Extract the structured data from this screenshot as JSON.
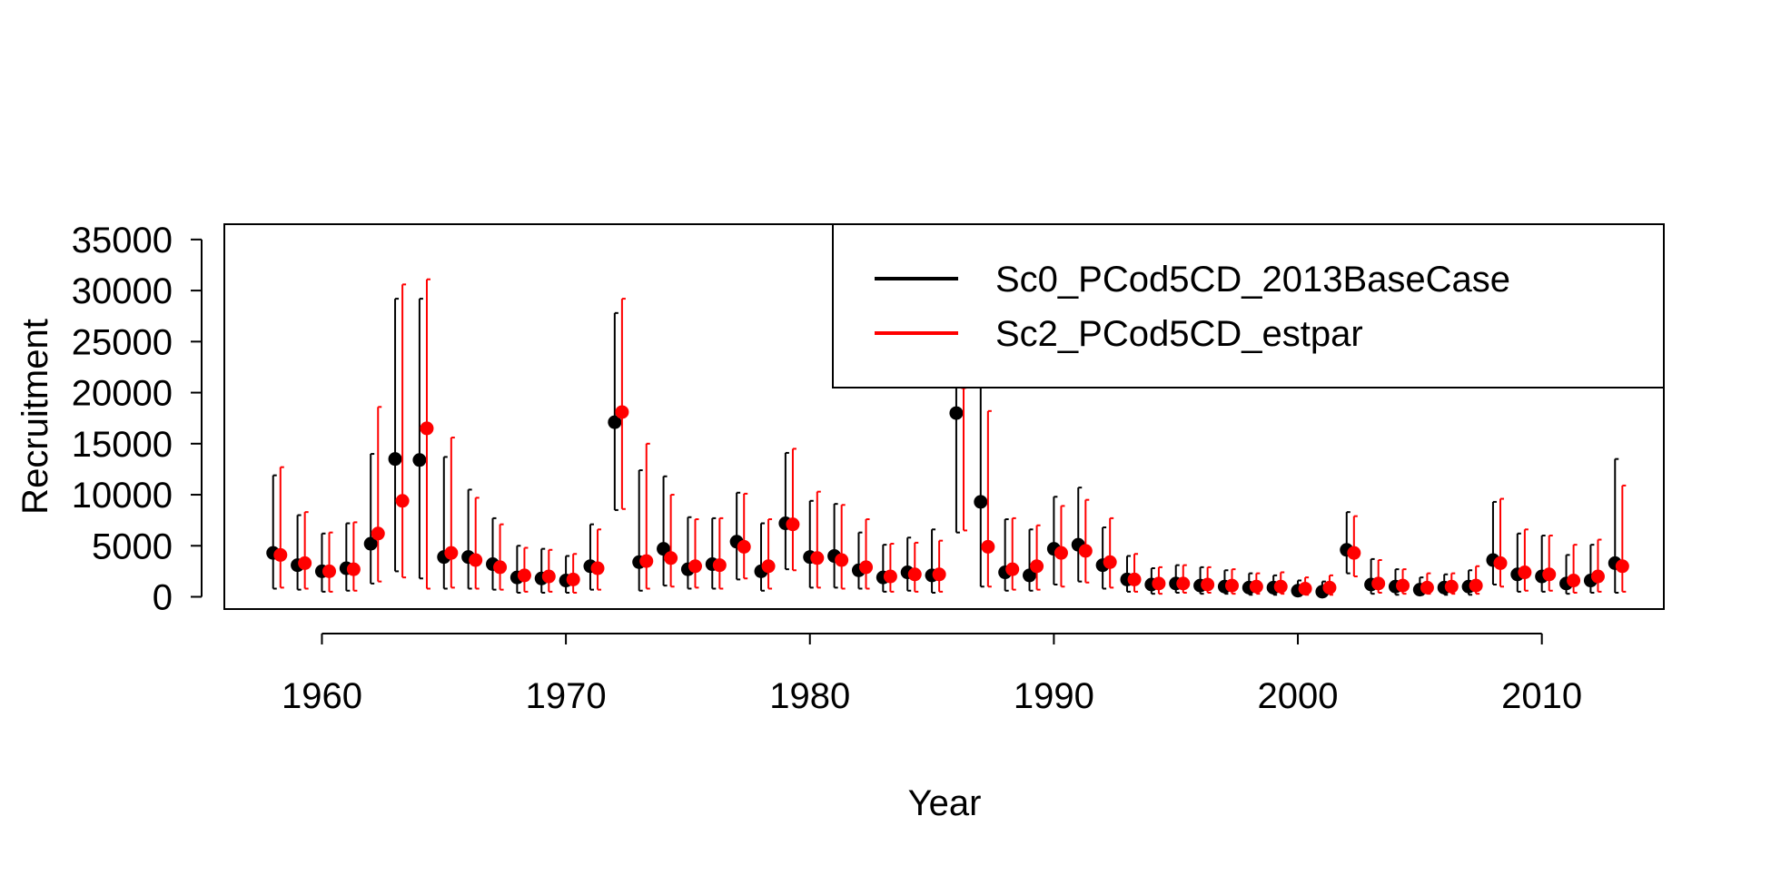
{
  "chart_data": {
    "type": "scatter",
    "xlabel": "Year",
    "ylabel": "Recruitment",
    "xlim": [
      1956,
      2015
    ],
    "ylim": [
      -1200,
      36500
    ],
    "xticks": [
      1960,
      1970,
      1980,
      1990,
      2000,
      2010
    ],
    "yticks": [
      0,
      5000,
      10000,
      15000,
      20000,
      25000,
      30000,
      35000
    ],
    "legend_position": "top-right",
    "series": [
      {
        "name": "Sc0_PCod5CD_2013BaseCase",
        "color": "#000000",
        "x": [
          1958,
          1959,
          1960,
          1961,
          1962,
          1963,
          1964,
          1965,
          1966,
          1967,
          1968,
          1969,
          1970,
          1971,
          1972,
          1973,
          1974,
          1975,
          1976,
          1977,
          1978,
          1979,
          1980,
          1981,
          1982,
          1983,
          1984,
          1985,
          1986,
          1987,
          1988,
          1989,
          1990,
          1991,
          1992,
          1993,
          1994,
          1995,
          1996,
          1997,
          1998,
          1999,
          2000,
          2001,
          2002,
          2003,
          2004,
          2005,
          2006,
          2007,
          2008,
          2009,
          2010,
          2011,
          2012,
          2013
        ],
        "y": [
          4300,
          3100,
          2500,
          2800,
          5200,
          13500,
          13400,
          3900,
          3900,
          3200,
          1900,
          1800,
          1600,
          3000,
          17100,
          3400,
          4700,
          2700,
          3200,
          5400,
          2500,
          7200,
          3900,
          4000,
          2600,
          1900,
          2400,
          2100,
          18000,
          9300,
          2400,
          2100,
          4700,
          5100,
          3100,
          1700,
          1200,
          1300,
          1100,
          1000,
          900,
          900,
          600,
          500,
          4600,
          1200,
          1000,
          700,
          900,
          1000,
          3600,
          2200,
          2000,
          1300,
          1600,
          3300
        ],
        "lower": [
          800,
          700,
          500,
          600,
          1300,
          2500,
          1800,
          800,
          800,
          700,
          400,
          400,
          400,
          700,
          8500,
          600,
          1100,
          800,
          800,
          1700,
          600,
          2700,
          900,
          900,
          800,
          500,
          600,
          400,
          6300,
          1000,
          600,
          600,
          1200,
          1500,
          800,
          500,
          300,
          400,
          300,
          300,
          200,
          200,
          100,
          100,
          2300,
          300,
          200,
          200,
          200,
          200,
          1200,
          500,
          500,
          300,
          400,
          400
        ],
        "upper": [
          11900,
          8000,
          6200,
          7200,
          14000,
          29200,
          29200,
          13700,
          10500,
          7700,
          5000,
          4700,
          4000,
          7100,
          27800,
          12400,
          11800,
          7800,
          7700,
          10200,
          7200,
          14100,
          9400,
          9100,
          6300,
          5100,
          5800,
          6600,
          27000,
          27500,
          7600,
          6600,
          9800,
          10700,
          6800,
          4000,
          2800,
          3100,
          2900,
          2600,
          2300,
          2100,
          1600,
          1500,
          8300,
          3700,
          2700,
          1900,
          2200,
          2600,
          9300,
          6200,
          6000,
          4100,
          5100,
          13500
        ]
      },
      {
        "name": "Sc2_PCod5CD_estpar",
        "color": "#ff0000",
        "x": [
          1958,
          1959,
          1960,
          1961,
          1962,
          1963,
          1964,
          1965,
          1966,
          1967,
          1968,
          1969,
          1970,
          1971,
          1972,
          1973,
          1974,
          1975,
          1976,
          1977,
          1978,
          1979,
          1980,
          1981,
          1982,
          1983,
          1984,
          1985,
          1986,
          1987,
          1988,
          1989,
          1990,
          1991,
          1992,
          1993,
          1994,
          1995,
          1996,
          1997,
          1998,
          1999,
          2000,
          2001,
          2002,
          2003,
          2004,
          2005,
          2006,
          2007,
          2008,
          2009,
          2010,
          2011,
          2012,
          2013
        ],
        "y": [
          4100,
          3300,
          2500,
          2700,
          6200,
          9400,
          16500,
          4300,
          3600,
          2900,
          2100,
          2000,
          1700,
          2800,
          18100,
          3500,
          3800,
          3000,
          3100,
          4900,
          3000,
          7100,
          3800,
          3600,
          2900,
          2000,
          2200,
          2200,
          21000,
          4900,
          2700,
          3000,
          4300,
          4500,
          3400,
          1700,
          1300,
          1300,
          1200,
          1100,
          1000,
          1000,
          800,
          900,
          4300,
          1300,
          1100,
          900,
          1000,
          1100,
          3300,
          2400,
          2200,
          1600,
          2000,
          3000
        ],
        "lower": [
          900,
          800,
          500,
          600,
          1500,
          1900,
          800,
          900,
          800,
          700,
          500,
          500,
          400,
          700,
          8600,
          800,
          1000,
          900,
          800,
          1800,
          800,
          2600,
          900,
          800,
          800,
          500,
          500,
          500,
          6500,
          1000,
          700,
          700,
          1000,
          1400,
          900,
          500,
          300,
          400,
          400,
          300,
          300,
          300,
          200,
          200,
          2000,
          400,
          300,
          300,
          300,
          300,
          1000,
          600,
          600,
          400,
          500,
          500
        ],
        "upper": [
          12700,
          8300,
          6300,
          7300,
          18600,
          30600,
          31100,
          15600,
          9700,
          7100,
          4800,
          4600,
          4200,
          6600,
          29200,
          15000,
          10000,
          7600,
          7700,
          10100,
          7600,
          14500,
          10300,
          9000,
          7600,
          5200,
          5300,
          5500,
          30500,
          18200,
          7700,
          7000,
          8900,
          9500,
          7700,
          4200,
          2900,
          3100,
          2900,
          2700,
          2300,
          2400,
          1900,
          2100,
          7900,
          3600,
          2700,
          2300,
          2300,
          3000,
          9600,
          6600,
          6000,
          5100,
          5600,
          10900
        ]
      }
    ]
  }
}
